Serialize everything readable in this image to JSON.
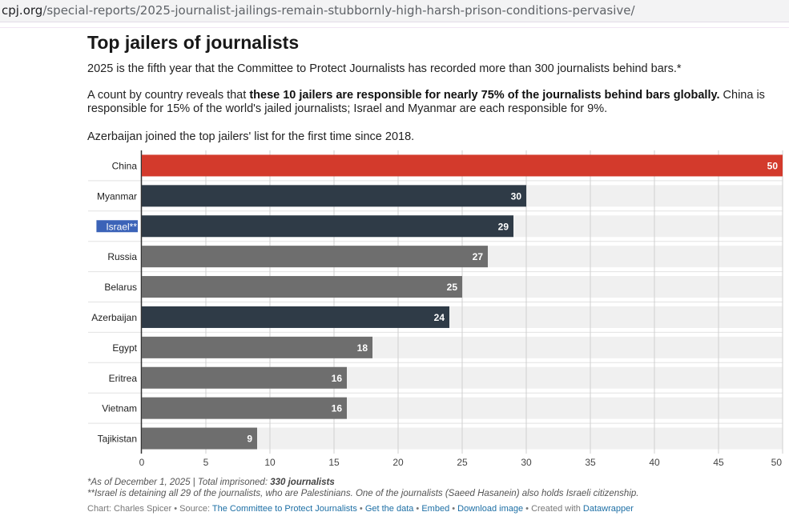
{
  "browser": {
    "url_host": "cpj.org",
    "url_path": "/special-reports/2025-journalist-jailings-remain-stubbornly-high-harsh-prison-conditions-pervasive/"
  },
  "article": {
    "title": "Top jailers of journalists",
    "intro": "2025 is the fifth year that the Committee to Protect Journalists has recorded more than 300 journalists behind bars.*",
    "count_prefix": "A count by country reveals that ",
    "count_bold": "these 10 jailers are responsible for nearly 75% of the journalists behind bars globally.",
    "count_suffix": " China is responsible for 15% of the world's jailed journalists; Israel and Myanmar are each responsible for 9%.",
    "azerbaijan_note": "Azerbaijan joined the top jailers' list for the first time since 2018."
  },
  "chart_data": {
    "type": "bar",
    "orientation": "horizontal",
    "categories": [
      "China",
      "Myanmar",
      "Israel**",
      "Russia",
      "Belarus",
      "Azerbaijan",
      "Egypt",
      "Eritrea",
      "Vietnam",
      "Tajikistan"
    ],
    "values": [
      50,
      30,
      29,
      27,
      25,
      24,
      18,
      16,
      16,
      9
    ],
    "bar_colors": [
      "#d33a2c",
      "#2f3b47",
      "#2f3b47",
      "#6e6e6e",
      "#6e6e6e",
      "#2f3b47",
      "#6e6e6e",
      "#6e6e6e",
      "#6e6e6e",
      "#6e6e6e"
    ],
    "xlim": [
      0,
      50
    ],
    "xticks": [
      0,
      5,
      10,
      15,
      20,
      25,
      30,
      35,
      40,
      45,
      50
    ],
    "highlighted_label": "Israel**",
    "grid": true
  },
  "footer": {
    "note1_prefix": "*As of December 1, 2025 | Total imprisoned: ",
    "note1_bold": "330 journalists",
    "note2": "**Israel is detaining all 29 of the journalists, who are Palestinians. One of the journalists (Saeed Hasanein) also holds Israeli citizenship.",
    "credit_prefix": "Chart: Charles Spicer • Source: ",
    "source_link": "The Committee to Protect Journalists",
    "sep1": " • ",
    "get_data": "Get the data",
    "sep2": " • ",
    "embed": "Embed",
    "sep3": " • ",
    "download": "Download image",
    "created_prefix": " • Created with ",
    "datawrapper": "Datawrapper"
  },
  "colors": {
    "accent_red": "#d33a2c",
    "dark_bar": "#2f3b47",
    "gray_bar": "#6e6e6e",
    "link": "#1d6fa5"
  }
}
